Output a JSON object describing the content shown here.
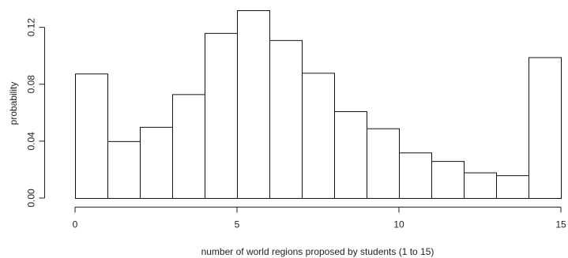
{
  "chart_data": {
    "type": "bar",
    "subtype": "histogram",
    "title": "",
    "xlabel": "number of world regions proposed by students (1 to 15)",
    "ylabel": "probability",
    "bins": [
      {
        "x0": 0,
        "x1": 1,
        "value": 0.0875
      },
      {
        "x0": 1,
        "x1": 2,
        "value": 0.04
      },
      {
        "x0": 2,
        "x1": 3,
        "value": 0.05
      },
      {
        "x0": 3,
        "x1": 4,
        "value": 0.073
      },
      {
        "x0": 4,
        "x1": 5,
        "value": 0.116
      },
      {
        "x0": 5,
        "x1": 6,
        "value": 0.132
      },
      {
        "x0": 6,
        "x1": 7,
        "value": 0.111
      },
      {
        "x0": 7,
        "x1": 8,
        "value": 0.088
      },
      {
        "x0": 8,
        "x1": 9,
        "value": 0.061
      },
      {
        "x0": 9,
        "x1": 10,
        "value": 0.049
      },
      {
        "x0": 10,
        "x1": 11,
        "value": 0.032
      },
      {
        "x0": 11,
        "x1": 12,
        "value": 0.026
      },
      {
        "x0": 12,
        "x1": 13,
        "value": 0.018
      },
      {
        "x0": 13,
        "x1": 14,
        "value": 0.016
      },
      {
        "x0": 14,
        "x1": 15,
        "value": 0.099
      }
    ],
    "xlim": [
      0,
      15
    ],
    "ylim": [
      0,
      0.132
    ],
    "xticks": [
      0,
      5,
      10,
      15
    ],
    "xtick_labels": [
      "0",
      "5",
      "10",
      "15"
    ],
    "yticks": [
      0,
      0.04,
      0.08,
      0.12
    ],
    "ytick_labels": [
      "0.00",
      "0.04",
      "0.08",
      "0.12"
    ],
    "grid": false,
    "legend": "none",
    "colors": {
      "bar_fill": "#ffffff",
      "bar_stroke": "#111111",
      "axis": "#222222"
    }
  }
}
